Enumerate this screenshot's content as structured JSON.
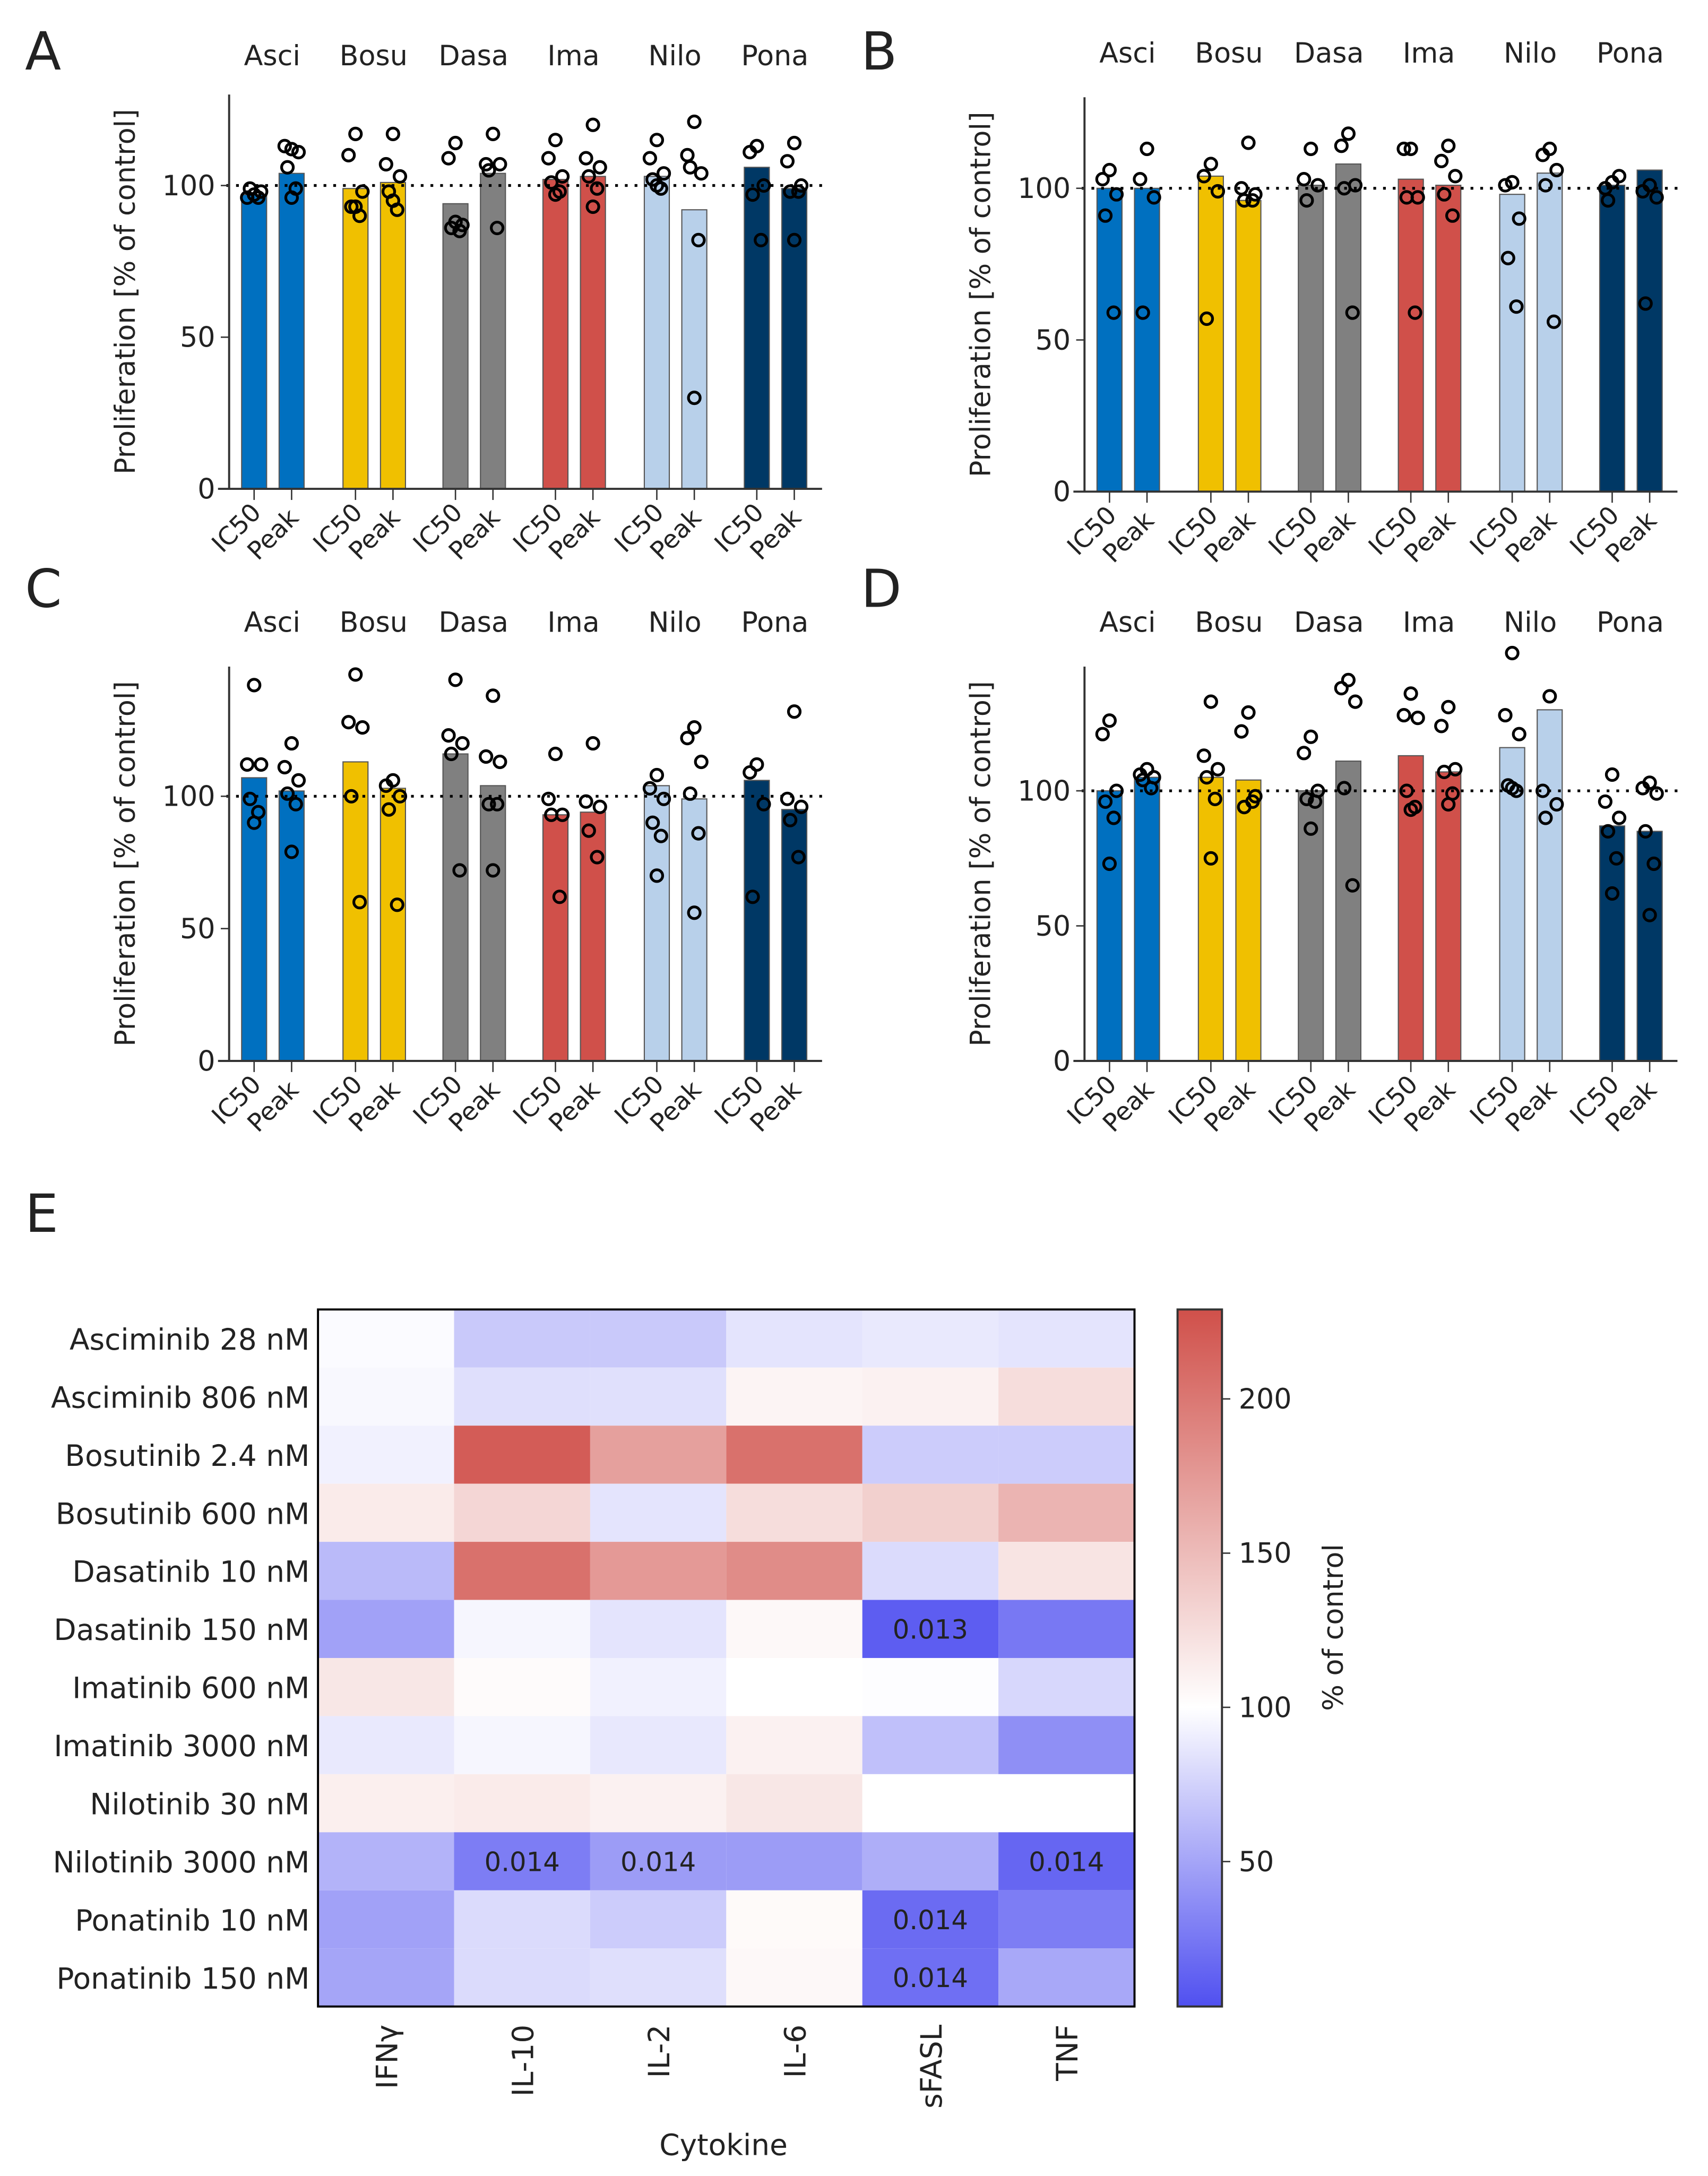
{
  "panels": [
    "A",
    "B",
    "C",
    "D",
    "E"
  ],
  "colors": {
    "Asci": "#0070C0",
    "Bosu": "#F0C000",
    "Dasa": "#808080",
    "Ima": "#D0504A",
    "Nilo": "#B8D0EA",
    "Pona": "#003865"
  },
  "chart_data": [
    {
      "panel": "A",
      "type": "bar",
      "ylabel": "Proliferation [% of control]",
      "ylim": [
        0,
        130
      ],
      "yticks": [
        0,
        50,
        100
      ],
      "reference_line": 100,
      "groups": [
        "Asci",
        "Bosu",
        "Dasa",
        "Ima",
        "Nilo",
        "Pona"
      ],
      "categories": [
        "IC50",
        "Peak"
      ],
      "values": [
        [
          97,
          104
        ],
        [
          99,
          101
        ],
        [
          94,
          104
        ],
        [
          102,
          103
        ],
        [
          103,
          92
        ],
        [
          106,
          99
        ]
      ],
      "points": [
        [
          [
            97,
            96,
            98,
            99,
            96,
            97
          ],
          [
            112,
            113,
            111,
            106,
            99,
            96
          ]
        ],
        [
          [
            117,
            110,
            98,
            93,
            90,
            93
          ],
          [
            117,
            107,
            103,
            98,
            92,
            95
          ]
        ],
        [
          [
            114,
            109,
            87,
            86,
            85,
            88
          ],
          [
            117,
            107,
            107,
            105,
            86
          ]
        ],
        [
          [
            115,
            109,
            103,
            101,
            98,
            97
          ],
          [
            120,
            109,
            106,
            103,
            99,
            93
          ]
        ],
        [
          [
            115,
            109,
            104,
            102,
            99,
            100
          ],
          [
            121,
            110,
            104,
            106,
            82,
            30
          ]
        ],
        [
          [
            113,
            111,
            100,
            97,
            82
          ],
          [
            114,
            108,
            100,
            98,
            98,
            82
          ]
        ]
      ]
    },
    {
      "panel": "B",
      "type": "bar",
      "ylabel": "Proliferation [% of control]",
      "ylim": [
        0,
        130
      ],
      "yticks": [
        0,
        50,
        100
      ],
      "reference_line": 100,
      "groups": [
        "Asci",
        "Bosu",
        "Dasa",
        "Ima",
        "Nilo",
        "Pona"
      ],
      "categories": [
        "IC50",
        "Peak"
      ],
      "values": [
        [
          100,
          100
        ],
        [
          104,
          96
        ],
        [
          101,
          108
        ],
        [
          103,
          101
        ],
        [
          98,
          105
        ],
        [
          101,
          106
        ]
      ],
      "points": [
        [
          [
            106,
            103,
            98,
            91,
            59
          ],
          [
            113,
            103,
            97,
            59
          ]
        ],
        [
          [
            108,
            104,
            99,
            57
          ],
          [
            115,
            100,
            98,
            96,
            96
          ]
        ],
        [
          [
            113,
            103,
            101,
            96
          ],
          [
            118,
            114,
            101,
            100,
            59
          ]
        ],
        [
          [
            113,
            113,
            97,
            97,
            59
          ],
          [
            114,
            109,
            104,
            98,
            91
          ]
        ],
        [
          [
            102,
            101,
            90,
            77,
            61
          ],
          [
            113,
            111,
            106,
            101,
            56
          ]
        ],
        [
          [
            102,
            100,
            104,
            96
          ],
          [
            101,
            99,
            97,
            62
          ]
        ]
      ]
    },
    {
      "panel": "C",
      "type": "bar",
      "ylabel": "Proliferation [% of control]",
      "ylim": [
        0,
        149
      ],
      "yticks": [
        0,
        50,
        100
      ],
      "reference_line": 100,
      "groups": [
        "Asci",
        "Bosu",
        "Dasa",
        "Ima",
        "Nilo",
        "Pona"
      ],
      "categories": [
        "IC50",
        "Peak"
      ],
      "values": [
        [
          107,
          102
        ],
        [
          113,
          103
        ],
        [
          116,
          104
        ],
        [
          93,
          94
        ],
        [
          104,
          99
        ],
        [
          106,
          95
        ]
      ],
      "points": [
        [
          [
            142,
            112,
            112,
            99,
            94,
            90
          ],
          [
            120,
            111,
            106,
            101,
            97,
            79
          ]
        ],
        [
          [
            146,
            128,
            126,
            100,
            60
          ],
          [
            106,
            104,
            100,
            95,
            59
          ]
        ],
        [
          [
            144,
            123,
            120,
            116,
            72
          ],
          [
            138,
            115,
            113,
            97,
            97,
            72
          ]
        ],
        [
          [
            116,
            99,
            93,
            93,
            62
          ],
          [
            120,
            98,
            96,
            87,
            77
          ]
        ],
        [
          [
            108,
            103,
            99,
            90,
            85,
            70
          ],
          [
            126,
            122,
            113,
            101,
            86,
            56
          ]
        ],
        [
          [
            112,
            109,
            97,
            62
          ],
          [
            132,
            99,
            96,
            91,
            77
          ]
        ]
      ]
    },
    {
      "panel": "D",
      "type": "bar",
      "ylabel": "Proliferation [% of control]",
      "ylim": [
        0,
        146
      ],
      "yticks": [
        0,
        50,
        100
      ],
      "reference_line": 100,
      "groups": [
        "Asci",
        "Bosu",
        "Dasa",
        "Ima",
        "Nilo",
        "Pona"
      ],
      "categories": [
        "IC50",
        "Peak"
      ],
      "values": [
        [
          100,
          105
        ],
        [
          105,
          104
        ],
        [
          100,
          111
        ],
        [
          113,
          107
        ],
        [
          116,
          130
        ],
        [
          87,
          85
        ]
      ],
      "points": [
        [
          [
            126,
            121,
            100,
            96,
            90,
            73
          ],
          [
            108,
            106,
            105,
            104,
            101
          ]
        ],
        [
          [
            133,
            113,
            108,
            105,
            97,
            75
          ],
          [
            129,
            122,
            98,
            94,
            96
          ]
        ],
        [
          [
            120,
            114,
            100,
            97,
            96,
            86
          ],
          [
            141,
            138,
            133,
            101,
            65
          ]
        ],
        [
          [
            136,
            128,
            127,
            100,
            94,
            93
          ],
          [
            131,
            124,
            108,
            107,
            99,
            95
          ]
        ],
        [
          [
            151,
            128,
            121,
            102,
            100,
            101
          ],
          [
            135,
            100,
            95,
            90
          ]
        ],
        [
          [
            106,
            96,
            90,
            85,
            75,
            62
          ],
          [
            103,
            101,
            99,
            85,
            73,
            54
          ]
        ]
      ]
    },
    {
      "panel": "E",
      "type": "heatmap",
      "xlabel": "Cytokine",
      "colorbar_label": "% of control",
      "colorbar_ticks": [
        50,
        100,
        150,
        200
      ],
      "color_range": [
        3,
        229
      ],
      "colormap": {
        "low": "#5050F0",
        "mid": "#FFFFFF",
        "high": "#D0504A"
      },
      "columns": [
        "IFNγ",
        "IL-10",
        "IL-2",
        "IL-6",
        "sFASL",
        "TNF"
      ],
      "rows": [
        "Asciminib 28 nM",
        "Asciminib 806 nM",
        "Bosutinib 2.4 nM",
        "Bosutinib 600 nM",
        "Dasatinib 10 nM",
        "Dasatinib 150 nM",
        "Imatinib 600 nM",
        "Imatinib 3000 nM",
        "Nilotinib 30 nM",
        "Nilotinib 3000 nM",
        "Ponatinib 10 nM",
        "Ponatinib 150 nM"
      ],
      "values": [
        [
          98,
          70,
          70,
          85,
          88,
          85
        ],
        [
          96,
          82,
          83,
          108,
          110,
          125
        ],
        [
          92,
          220,
          170,
          205,
          72,
          72
        ],
        [
          115,
          130,
          85,
          125,
          135,
          155
        ],
        [
          62,
          205,
          175,
          185,
          80,
          120
        ],
        [
          48,
          95,
          85,
          105,
          10,
          25
        ],
        [
          118,
          103,
          92,
          100,
          99,
          78
        ],
        [
          88,
          95,
          87,
          110,
          65,
          38
        ],
        [
          112,
          115,
          110,
          118,
          100,
          100
        ],
        [
          58,
          28,
          45,
          45,
          55,
          15
        ],
        [
          48,
          80,
          72,
          104,
          18,
          28
        ],
        [
          50,
          80,
          82,
          105,
          20,
          52
        ]
      ],
      "annotations": [
        {
          "row": 5,
          "col": 4,
          "text": "0.013"
        },
        {
          "row": 9,
          "col": 1,
          "text": "0.014"
        },
        {
          "row": 9,
          "col": 2,
          "text": "0.014"
        },
        {
          "row": 9,
          "col": 5,
          "text": "0.014"
        },
        {
          "row": 10,
          "col": 4,
          "text": "0.014"
        },
        {
          "row": 11,
          "col": 4,
          "text": "0.014"
        }
      ]
    }
  ]
}
